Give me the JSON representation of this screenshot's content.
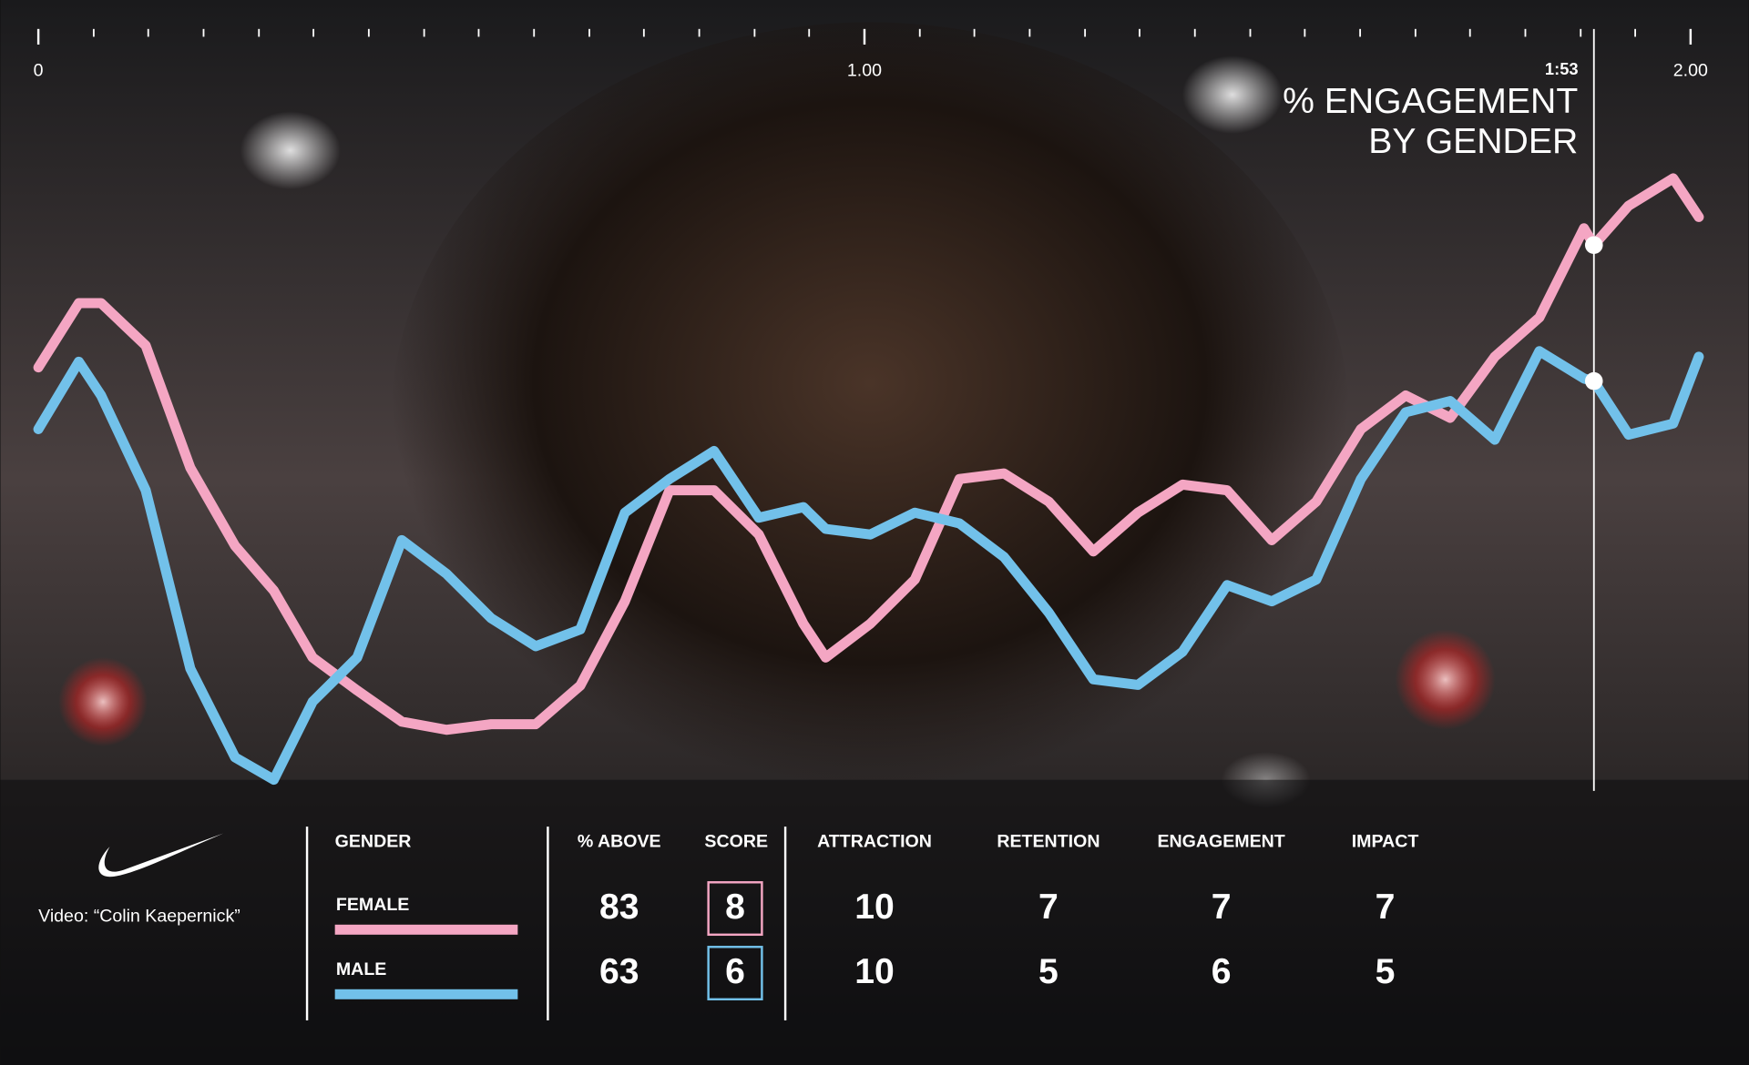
{
  "chart_data": {
    "type": "line",
    "title": [
      "% ENGAGEMENT",
      "BY GENDER"
    ],
    "x": [
      0,
      0.049,
      0.076,
      0.13,
      0.184,
      0.238,
      0.285,
      0.332,
      0.386,
      0.44,
      0.494,
      0.548,
      0.602,
      0.656,
      0.71,
      0.764,
      0.818,
      0.872,
      0.926,
      0.953,
      1.007,
      1.061,
      1.115,
      1.169,
      1.223,
      1.277,
      1.331,
      1.385,
      1.439,
      1.493,
      1.547,
      1.601,
      1.655,
      1.709,
      1.763,
      1.817,
      1.871,
      1.883,
      1.925,
      1.979,
      2.01
    ],
    "series": [
      {
        "name": "FEMALE",
        "color": "#f4a6c3",
        "values": [
          67.9,
          78.2,
          78.2,
          71.4,
          51.8,
          39.3,
          32.1,
          21.4,
          16.1,
          11.1,
          9.8,
          10.7,
          10.7,
          16.9,
          30.4,
          48.2,
          48.2,
          41.1,
          26.8,
          21.4,
          26.8,
          33.9,
          50,
          50.9,
          46.4,
          38.4,
          44.6,
          49.1,
          48.2,
          40.2,
          46.4,
          58,
          63.4,
          59.8,
          69.6,
          75.9,
          90.2,
          87.5,
          93.8,
          98.2,
          92
        ]
      },
      {
        "name": "MALE",
        "color": "#72c1ea",
        "values": [
          58,
          68.8,
          63.4,
          48.2,
          19.6,
          5.4,
          1.8,
          14.3,
          21.4,
          40.2,
          34.8,
          27.7,
          23.2,
          25.9,
          44.6,
          50,
          54.5,
          43.8,
          45.5,
          42,
          41.1,
          44.6,
          42.9,
          37.5,
          28.6,
          17.9,
          17,
          22.3,
          33,
          30.4,
          33.9,
          50,
          60.7,
          62.5,
          56.3,
          70.5,
          66.1,
          65.7,
          57.1,
          58.9,
          69.6
        ]
      }
    ],
    "xlim": [
      0,
      2
    ],
    "xticks": [
      0,
      {
        "value": 1,
        "label": "1.00"
      },
      {
        "value": 2,
        "label": "2.00"
      }
    ],
    "minor_xticks": [
      0.067,
      0.133,
      0.2,
      0.267,
      0.333,
      0.4,
      0.467,
      0.533,
      0.6,
      0.667,
      0.733,
      0.8,
      0.867,
      0.933,
      1.067,
      1.133,
      1.2,
      1.267,
      1.333,
      1.4,
      1.467,
      1.533,
      1.6,
      1.667,
      1.733,
      1.8,
      1.867,
      1.933
    ],
    "marker": {
      "value": 1.883,
      "label": "1:53",
      "index": 37
    },
    "ylim": [
      0,
      100
    ]
  },
  "caption": "Video: “Colin Kaepernick”",
  "table": {
    "columns": [
      "GENDER",
      "% ABOVE",
      "SCORE",
      "ATTRACTION",
      "RETENTION",
      "ENGAGEMENT",
      "IMPACT"
    ],
    "rows": [
      [
        83,
        8,
        10,
        7,
        7,
        7
      ],
      [
        63,
        6,
        10,
        5,
        6,
        5
      ]
    ]
  }
}
